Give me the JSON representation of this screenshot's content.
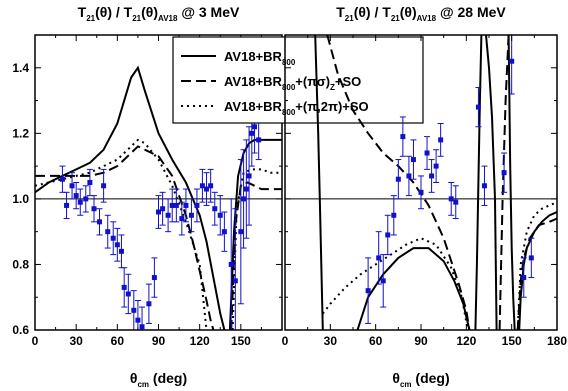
{
  "chart_data": [
    {
      "type": "line",
      "title": "T21(θ) / T21(θ)AV18 @ 3 MeV",
      "title_parts": {
        "a": "T",
        "a_sub": "21",
        "b": "(θ) / T",
        "b_sub": "21",
        "c": "(θ)",
        "c_sub": "AV18",
        "d": " @ 3 MeV"
      },
      "xlabel": "θcm (deg)",
      "xlabel_parts": {
        "main": "θ",
        "sub": "cm",
        "rest": " (deg)"
      },
      "ylabel": "",
      "xlim": [
        0,
        180
      ],
      "ylim": [
        0.6,
        1.5
      ],
      "xticks": [
        "0",
        "30",
        "60",
        "90",
        "120",
        "150"
      ],
      "yticks": [
        "0.6",
        "0.8",
        "1.0",
        "1.2",
        "1.4"
      ],
      "reference_line": 1.0,
      "legend": {
        "placement": "top-right",
        "entries": [
          {
            "label": "AV18+BR800",
            "parts": {
              "main": "AV18+BR",
              "sub": "800",
              "rest": ""
            },
            "dash": "solid"
          },
          {
            "label": "AV18+BR800+(πσ)Z+SO",
            "parts": {
              "main": "AV18+BR",
              "sub": "800",
              "mid": "+(πσ)",
              "sub2": "Z",
              "rest": "+SO"
            },
            "dash": "dashed"
          },
          {
            "label": "AV18+BR800+(π,2π)+SO",
            "parts": {
              "main": "AV18+BR",
              "sub": "800",
              "rest": "+(π,2π)+SO"
            },
            "dash": "dotted"
          }
        ]
      },
      "series": [
        {
          "name": "AV18+BR800",
          "dash": "solid",
          "x": [
            0,
            10,
            20,
            30,
            40,
            50,
            60,
            65,
            70,
            75,
            80,
            90,
            100,
            110,
            120,
            125,
            130,
            135,
            138
          ],
          "y": [
            1.02,
            1.05,
            1.07,
            1.09,
            1.11,
            1.15,
            1.23,
            1.3,
            1.37,
            1.4,
            1.33,
            1.2,
            1.12,
            1.05,
            0.95,
            0.87,
            0.76,
            0.65,
            0.6
          ]
        },
        {
          "name": "AV18+BR800+(πσ)Z+SO",
          "dash": "dashed",
          "x": [
            0,
            10,
            20,
            30,
            40,
            50,
            60,
            70,
            75,
            80,
            90,
            100,
            110,
            115,
            120,
            125,
            128,
            130
          ],
          "y": [
            1.07,
            1.07,
            1.07,
            1.07,
            1.07,
            1.08,
            1.1,
            1.14,
            1.16,
            1.15,
            1.13,
            1.07,
            0.95,
            0.87,
            0.78,
            0.69,
            0.63,
            0.6
          ]
        },
        {
          "name": "AV18+BR800+(π,2π)+SO",
          "dash": "dotted",
          "x": [
            0,
            10,
            20,
            30,
            40,
            50,
            60,
            70,
            75,
            80,
            90,
            100,
            110,
            120,
            125
          ],
          "y": [
            1.04,
            1.05,
            1.06,
            1.07,
            1.08,
            1.1,
            1.12,
            1.16,
            1.18,
            1.17,
            1.12,
            1.04,
            0.93,
            0.8,
            0.6
          ]
        },
        {
          "name": "",
          "dash": "solid",
          "x": [
            142,
            145,
            148,
            152,
            156,
            160,
            165,
            170,
            175,
            180
          ],
          "y": [
            0.6,
            0.9,
            1.07,
            1.14,
            1.17,
            1.18,
            1.18,
            1.18,
            1.18,
            1.18
          ]
        },
        {
          "name": "",
          "dash": "dashed",
          "x": [
            143,
            146,
            150,
            155,
            160,
            165,
            170,
            175,
            180
          ],
          "y": [
            0.6,
            0.92,
            1.04,
            1.05,
            1.04,
            1.03,
            1.03,
            1.03,
            1.03
          ]
        },
        {
          "name": "",
          "dash": "dotted",
          "x": [
            144,
            147,
            152,
            158,
            165,
            172,
            180
          ],
          "y": [
            0.6,
            0.97,
            1.08,
            1.09,
            1.09,
            1.08,
            1.08
          ]
        }
      ],
      "points": [
        {
          "x": 20,
          "y": 1.06,
          "err": 0.04
        },
        {
          "x": 23,
          "y": 0.98,
          "err": 0.04
        },
        {
          "x": 27,
          "y": 1.04,
          "err": 0.04
        },
        {
          "x": 30,
          "y": 1.01,
          "err": 0.04
        },
        {
          "x": 33,
          "y": 0.99,
          "err": 0.04
        },
        {
          "x": 37,
          "y": 1.0,
          "err": 0.04
        },
        {
          "x": 40,
          "y": 1.05,
          "err": 0.04
        },
        {
          "x": 43,
          "y": 0.97,
          "err": 0.04
        },
        {
          "x": 47,
          "y": 0.93,
          "err": 0.04
        },
        {
          "x": 50,
          "y": 1.04,
          "err": 0.05
        },
        {
          "x": 53,
          "y": 0.9,
          "err": 0.05
        },
        {
          "x": 57,
          "y": 0.88,
          "err": 0.05
        },
        {
          "x": 60,
          "y": 0.86,
          "err": 0.05
        },
        {
          "x": 63,
          "y": 0.84,
          "err": 0.05
        },
        {
          "x": 65,
          "y": 0.73,
          "err": 0.06
        },
        {
          "x": 68,
          "y": 0.71,
          "err": 0.06
        },
        {
          "x": 72,
          "y": 0.66,
          "err": 0.06
        },
        {
          "x": 75,
          "y": 0.63,
          "err": 0.06
        },
        {
          "x": 78,
          "y": 0.61,
          "err": 0.06
        },
        {
          "x": 83,
          "y": 0.68,
          "err": 0.06
        },
        {
          "x": 87,
          "y": 0.76,
          "err": 0.06
        },
        {
          "x": 90,
          "y": 0.96,
          "err": 0.05
        },
        {
          "x": 93,
          "y": 0.97,
          "err": 0.05
        },
        {
          "x": 97,
          "y": 0.95,
          "err": 0.05
        },
        {
          "x": 100,
          "y": 0.98,
          "err": 0.05
        },
        {
          "x": 103,
          "y": 0.98,
          "err": 0.05
        },
        {
          "x": 107,
          "y": 0.94,
          "err": 0.05
        },
        {
          "x": 110,
          "y": 0.98,
          "err": 0.05
        },
        {
          "x": 114,
          "y": 0.95,
          "err": 0.05
        },
        {
          "x": 118,
          "y": 0.98,
          "err": 0.05
        },
        {
          "x": 122,
          "y": 1.04,
          "err": 0.05
        },
        {
          "x": 125,
          "y": 1.03,
          "err": 0.05
        },
        {
          "x": 128,
          "y": 1.04,
          "err": 0.05
        },
        {
          "x": 131,
          "y": 0.97,
          "err": 0.05
        },
        {
          "x": 135,
          "y": 0.95,
          "err": 0.06
        },
        {
          "x": 138,
          "y": 0.9,
          "err": 0.06
        },
        {
          "x": 143,
          "y": 0.8,
          "err": 0.2
        },
        {
          "x": 146,
          "y": 0.75,
          "err": 0.22
        },
        {
          "x": 150,
          "y": 0.9,
          "err": 0.22
        },
        {
          "x": 152,
          "y": 1.0,
          "err": 0.15
        },
        {
          "x": 154,
          "y": 1.03,
          "err": 0.15
        },
        {
          "x": 156,
          "y": 1.07,
          "err": 0.15
        },
        {
          "x": 158,
          "y": 1.2,
          "err": 0.1
        },
        {
          "x": 160,
          "y": 1.22,
          "err": 0.08
        },
        {
          "x": 163,
          "y": 1.18,
          "err": 0.06
        }
      ],
      "colors": {
        "data": "#1111cc",
        "curve": "#000000"
      }
    },
    {
      "type": "line",
      "title": "T21(θ) / T21(θ)AV18 @ 28 MeV",
      "title_parts": {
        "a": "T",
        "a_sub": "21",
        "b": "(θ) / T",
        "b_sub": "21",
        "c": "(θ)",
        "c_sub": "AV18",
        "d": " @ 28 MeV"
      },
      "xlabel": "θcm (deg)",
      "xlabel_parts": {
        "main": "θ",
        "sub": "cm",
        "rest": " (deg)"
      },
      "ylabel": "",
      "xlim": [
        0,
        180
      ],
      "ylim": [
        0.6,
        1.5
      ],
      "xticks": [
        "0",
        "30",
        "60",
        "90",
        "120",
        "150",
        "180"
      ],
      "yticks": [],
      "reference_line": 1.0,
      "series": [
        {
          "name": "AV18+BR800",
          "dash": "solid",
          "x": [
            20,
            22,
            23,
            24,
            25
          ],
          "y": [
            1.5,
            1.2,
            1.0,
            0.8,
            0.6
          ]
        },
        {
          "name": "AV18+BR800",
          "dash": "solid",
          "x": [
            48,
            55,
            65,
            75,
            85,
            95,
            105,
            112,
            118,
            122
          ],
          "y": [
            0.6,
            0.7,
            0.77,
            0.82,
            0.85,
            0.85,
            0.81,
            0.75,
            0.68,
            0.6
          ]
        },
        {
          "name": "AV18+BR800",
          "dash": "solid",
          "x": [
            126,
            127,
            128,
            129,
            130
          ],
          "y": [
            0.6,
            0.8,
            1.05,
            1.3,
            1.5
          ]
        },
        {
          "name": "AV18+BR800",
          "dash": "solid",
          "x": [
            133,
            135,
            137,
            139,
            140
          ],
          "y": [
            1.5,
            1.4,
            1.25,
            1.0,
            0.6
          ]
        },
        {
          "name": "AV18+BR800",
          "dash": "solid",
          "x": [
            148,
            149,
            150,
            151,
            152
          ],
          "y": [
            1.5,
            1.1,
            0.85,
            0.7,
            0.6
          ]
        },
        {
          "name": "AV18+BR800",
          "dash": "solid",
          "x": [
            155,
            156,
            158,
            160,
            165,
            170,
            175,
            180
          ],
          "y": [
            0.6,
            0.7,
            0.8,
            0.85,
            0.9,
            0.93,
            0.95,
            0.96
          ]
        },
        {
          "name": "AV18+BR800+(πσ)Z+SO",
          "dash": "dashed",
          "x": [
            28,
            35,
            45,
            55,
            65,
            75,
            85,
            95,
            105,
            115,
            120,
            122
          ],
          "y": [
            1.5,
            1.38,
            1.27,
            1.2,
            1.14,
            1.1,
            1.05,
            0.98,
            0.88,
            0.74,
            0.66,
            0.6
          ]
        },
        {
          "name": "AV18+BR800+(πσ)Z+SO",
          "dash": "dashed",
          "x": [
            142,
            144,
            146,
            148
          ],
          "y": [
            0.6,
            1.0,
            1.3,
            1.5
          ]
        },
        {
          "name": "AV18+BR800+(πσ)Z+SO",
          "dash": "dashed",
          "x": [
            154,
            156,
            158,
            162,
            168,
            175,
            180
          ],
          "y": [
            0.6,
            0.75,
            0.82,
            0.88,
            0.92,
            0.93,
            0.94
          ]
        },
        {
          "name": "AV18+BR800+(π,2π)+SO",
          "dash": "dotted",
          "x": [
            25,
            30,
            40,
            50,
            60,
            70,
            80,
            90,
            100,
            110,
            117,
            121
          ],
          "y": [
            0.65,
            0.68,
            0.73,
            0.77,
            0.8,
            0.83,
            0.86,
            0.88,
            0.86,
            0.79,
            0.7,
            0.6
          ]
        },
        {
          "name": "AV18+BR800+(π,2π)+SO",
          "dash": "dotted",
          "x": [
            154,
            156,
            160,
            165,
            170,
            175,
            180
          ],
          "y": [
            0.6,
            0.8,
            0.9,
            0.95,
            0.97,
            0.98,
            0.99
          ]
        }
      ],
      "points": [
        {
          "x": 55,
          "y": 0.72,
          "err": 0.1
        },
        {
          "x": 62,
          "y": 0.82,
          "err": 0.08
        },
        {
          "x": 65,
          "y": 0.75,
          "err": 0.08
        },
        {
          "x": 68,
          "y": 0.89,
          "err": 0.06
        },
        {
          "x": 72,
          "y": 0.95,
          "err": 0.06
        },
        {
          "x": 75,
          "y": 1.06,
          "err": 0.06
        },
        {
          "x": 78,
          "y": 1.19,
          "err": 0.06
        },
        {
          "x": 82,
          "y": 1.07,
          "err": 0.06
        },
        {
          "x": 85,
          "y": 1.12,
          "err": 0.06
        },
        {
          "x": 90,
          "y": 1.02,
          "err": 0.05
        },
        {
          "x": 94,
          "y": 1.14,
          "err": 0.05
        },
        {
          "x": 97,
          "y": 1.07,
          "err": 0.05
        },
        {
          "x": 100,
          "y": 1.1,
          "err": 0.05
        },
        {
          "x": 103,
          "y": 1.18,
          "err": 0.05
        },
        {
          "x": 110,
          "y": 1.0,
          "err": 0.05
        },
        {
          "x": 113,
          "y": 0.99,
          "err": 0.05
        },
        {
          "x": 128,
          "y": 1.28,
          "err": 0.06
        },
        {
          "x": 132,
          "y": 1.04,
          "err": 0.06
        },
        {
          "x": 145,
          "y": 1.08,
          "err": 0.06
        },
        {
          "x": 150,
          "y": 1.42,
          "err": 0.1
        },
        {
          "x": 158,
          "y": 0.76,
          "err": 0.06
        },
        {
          "x": 163,
          "y": 0.82,
          "err": 0.06
        }
      ],
      "colors": {
        "data": "#1111cc",
        "curve": "#000000"
      }
    }
  ]
}
